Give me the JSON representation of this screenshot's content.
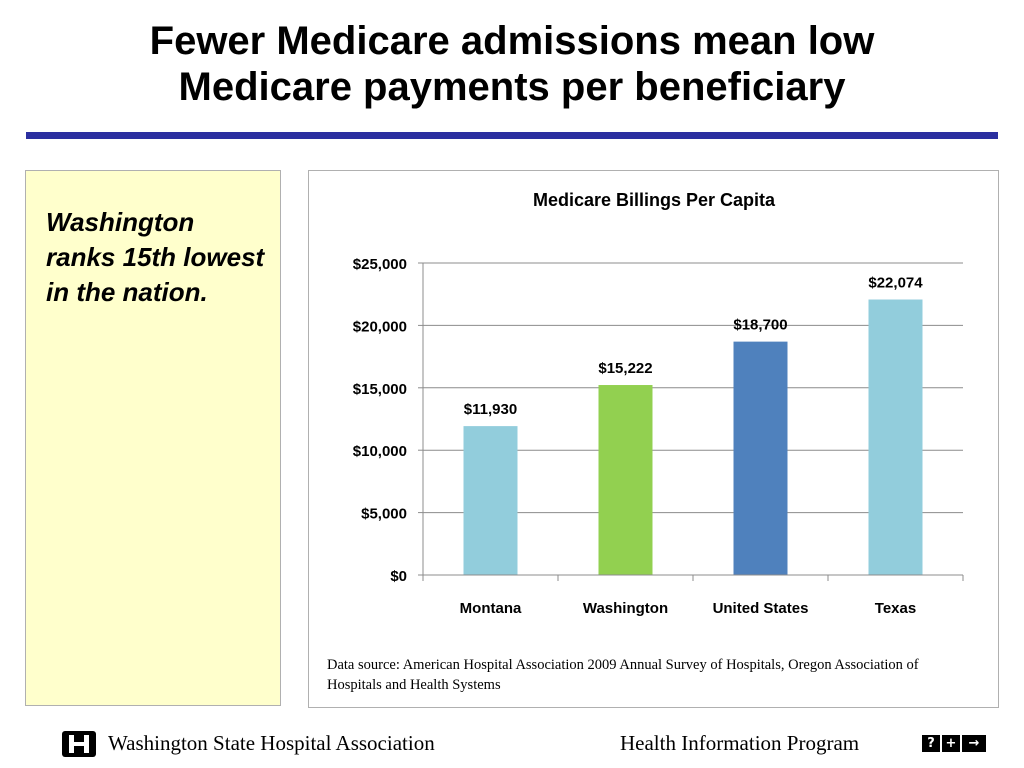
{
  "slide": {
    "title_line1": "Fewer Medicare admissions mean low",
    "title_line2": "Medicare payments per beneficiary",
    "note": "Washington ranks 15th lowest in the nation.",
    "source": "Data source: American Hospital Association 2009 Annual Survey of Hospitals, Oregon Association of Hospitals and Health Systems"
  },
  "chart_data": {
    "type": "bar",
    "title": "Medicare Billings Per Capita",
    "categories": [
      "Montana",
      "Washington",
      "United States",
      "Texas"
    ],
    "values": [
      11930,
      15222,
      18700,
      22074
    ],
    "value_labels": [
      "$11,930",
      "$15,222",
      "$18,700",
      "$22,074"
    ],
    "colors": [
      "#92cddc",
      "#92d050",
      "#4f81bd",
      "#92cddc"
    ],
    "ylim": [
      0,
      25000
    ],
    "yticks": [
      0,
      5000,
      10000,
      15000,
      20000,
      25000
    ],
    "ytick_labels": [
      "$0",
      "$5,000",
      "$10,000",
      "$15,000",
      "$20,000",
      "$25,000"
    ],
    "xlabel": "",
    "ylabel": "",
    "grid": true,
    "legend": "none"
  },
  "footer": {
    "organization": "Washington State Hospital Association",
    "program": "Health Information Program",
    "logo_icon": "wsha-logo-icon",
    "nav_icons": [
      {
        "name": "help-icon",
        "glyph": "?"
      },
      {
        "name": "plus-icon",
        "glyph": "+"
      },
      {
        "name": "arrow-right-icon",
        "glyph": "→"
      }
    ]
  }
}
